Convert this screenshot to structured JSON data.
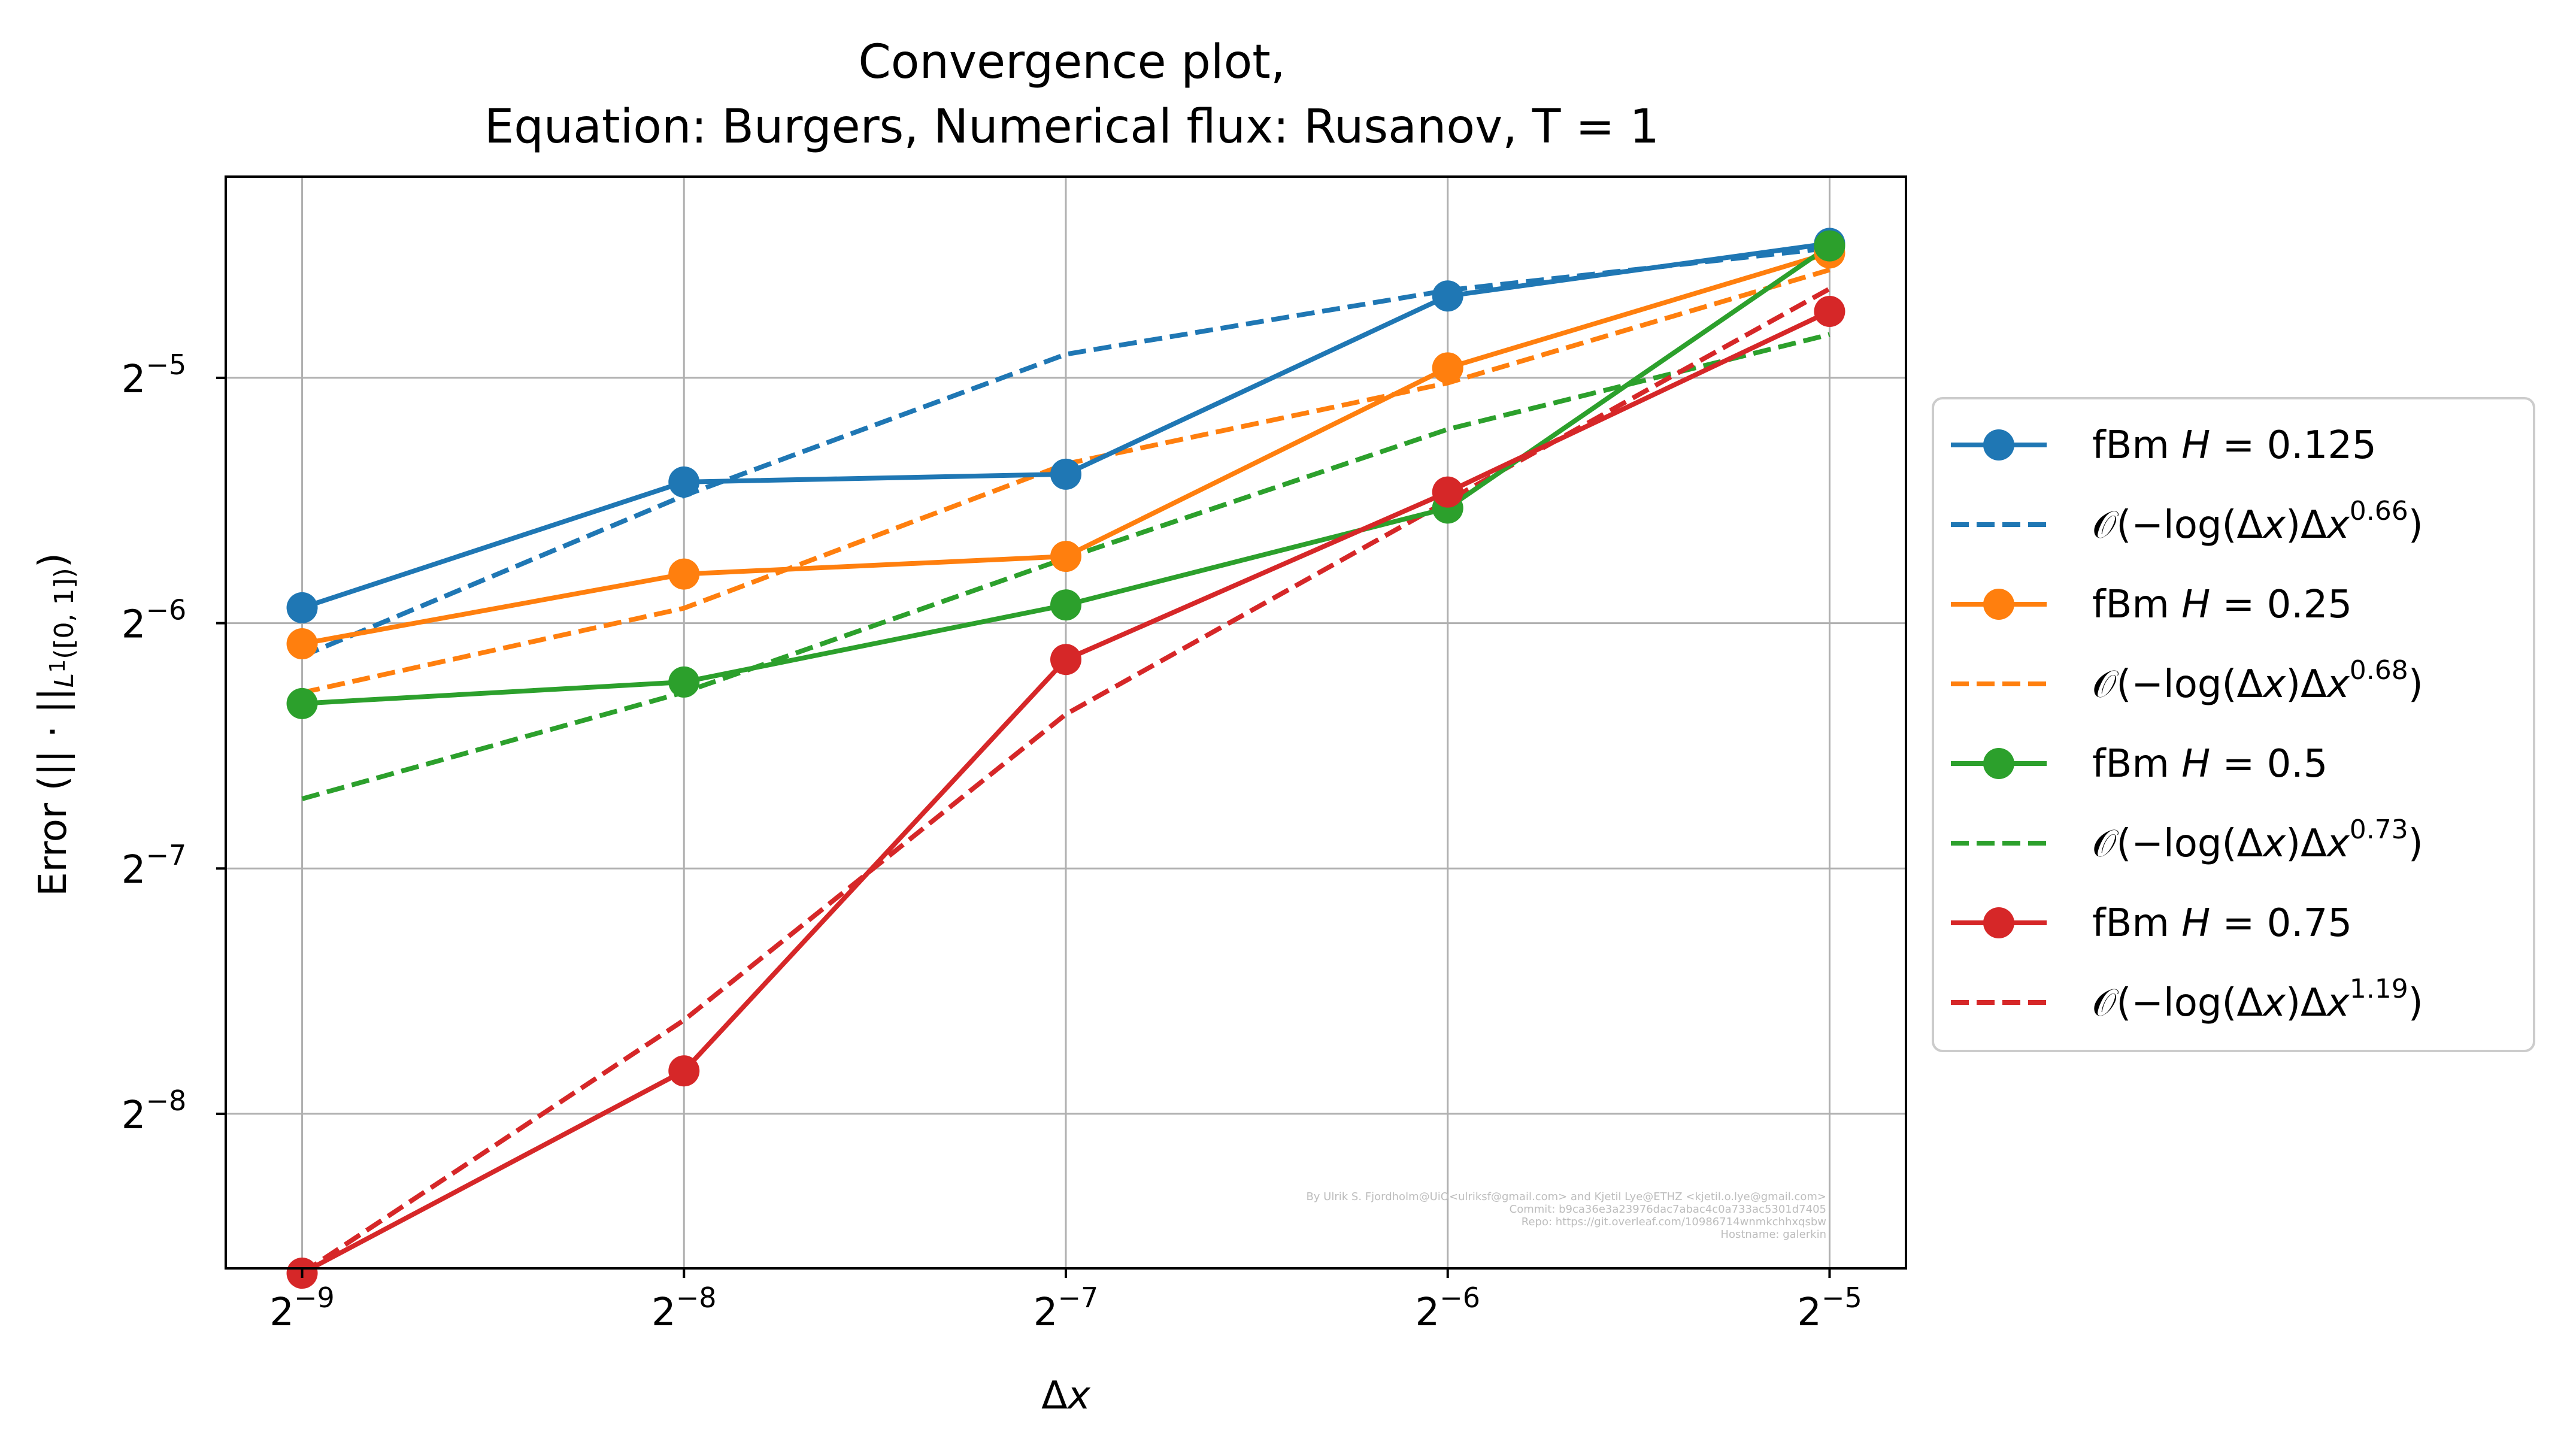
{
  "chart_data": {
    "type": "line",
    "title": "Convergence plot,",
    "subtitle": "Equation: Burgers, Numerical flux: Rusanov, T = 1",
    "xlabel": "Δx",
    "ylabel": "Error (|| · ||L¹([0,1]))",
    "xscale": "log2",
    "yscale": "log2",
    "xlim_log2": [
      -9.2,
      -4.8
    ],
    "ylim_log2": [
      -8.63,
      -4.18
    ],
    "x": [
      0.001953125,
      0.00390625,
      0.0078125,
      0.015625,
      0.03125
    ],
    "x_tick_labels": [
      {
        "base": "2",
        "exp": "−9"
      },
      {
        "base": "2",
        "exp": "−8"
      },
      {
        "base": "2",
        "exp": "−7"
      },
      {
        "base": "2",
        "exp": "−6"
      },
      {
        "base": "2",
        "exp": "−5"
      }
    ],
    "y_ticks_log2": [
      -8,
      -7,
      -6,
      -5
    ],
    "y_tick_labels": [
      {
        "base": "2",
        "exp": "−8"
      },
      {
        "base": "2",
        "exp": "−7"
      },
      {
        "base": "2",
        "exp": "−6"
      },
      {
        "base": "2",
        "exp": "−5"
      }
    ],
    "x_ticks_log2": [
      -9,
      -8,
      -7,
      -6,
      -5
    ],
    "grid": true,
    "legend_position": "outside-right",
    "series": [
      {
        "name": "fBm H = 0.125",
        "style": "solid-marker",
        "color": "#1f77b4",
        "y": [
          0.01632,
          0.02328,
          0.0238,
          0.03938,
          0.04569
        ]
      },
      {
        "name": "𝒪(−log(Δx)Δx^0.66)",
        "style": "dashed",
        "color": "#1f77b4",
        "y": [
          0.01423,
          0.0224,
          0.0334,
          0.04002,
          0.04509
        ]
      },
      {
        "name": "fBm H = 0.25",
        "style": "solid-marker",
        "color": "#ff7f0e",
        "y": [
          0.01474,
          0.01795,
          0.01887,
          0.03214,
          0.04447
        ]
      },
      {
        "name": "𝒪(−log(Δx)Δx^0.68)",
        "style": "dashed",
        "color": "#ff7f0e",
        "y": [
          0.01284,
          0.0163,
          0.0245,
          0.0308,
          0.0424
        ]
      },
      {
        "name": "fBm H = 0.5",
        "style": "solid-marker",
        "color": "#2ca02c",
        "y": [
          0.01245,
          0.01323,
          0.01645,
          0.02163,
          0.04537
        ]
      },
      {
        "name": "𝒪(−log(Δx)Δx^0.73)",
        "style": "dashed",
        "color": "#2ca02c",
        "y": [
          0.00951,
          0.01285,
          0.01877,
          0.02702,
          0.03532
        ]
      },
      {
        "name": "fBm H = 0.75",
        "style": "solid-marker",
        "color": "#d62728",
        "y": [
          0.00249,
          0.00441,
          0.0141,
          0.02263,
          0.0377
        ]
      },
      {
        "name": "𝒪(−log(Δx)Δx^1.19)",
        "style": "dashed",
        "color": "#d62728",
        "y": [
          0.00249,
          0.00509,
          0.01208,
          0.02208,
          0.04019
        ]
      }
    ],
    "legend_labels": [
      {
        "prefix": "fBm ",
        "var": "H",
        "rest": " = 0.125"
      },
      {
        "prefix": "𝒪(−log(Δ",
        "var": "x",
        "mid": ")Δ",
        "var2": "x",
        "sup": "0.66",
        "close": ")"
      },
      {
        "prefix": "fBm ",
        "var": "H",
        "rest": " = 0.25"
      },
      {
        "prefix": "𝒪(−log(Δ",
        "var": "x",
        "mid": ")Δ",
        "var2": "x",
        "sup": "0.68",
        "close": ")"
      },
      {
        "prefix": "fBm ",
        "var": "H",
        "rest": " = 0.5"
      },
      {
        "prefix": "𝒪(−log(Δ",
        "var": "x",
        "mid": ")Δ",
        "var2": "x",
        "sup": "0.73",
        "close": ")"
      },
      {
        "prefix": "fBm ",
        "var": "H",
        "rest": " = 0.75"
      },
      {
        "prefix": "𝒪(−log(Δ",
        "var": "x",
        "mid": ")Δ",
        "var2": "x",
        "sup": "1.19",
        "close": ")"
      }
    ],
    "credits": [
      "By Ulrik S. Fjordholm@UiO<ulriksf@gmail.com> and Kjetil Lye@ETHZ <kjetil.o.lye@gmail.com>",
      "Commit: b9ca36e3a23976dac7abac4c0a733ac5301d7405",
      "Repo: https://git.overleaf.com/10986714wnmkchhxqsbw",
      "Hostname: galerkin"
    ]
  }
}
